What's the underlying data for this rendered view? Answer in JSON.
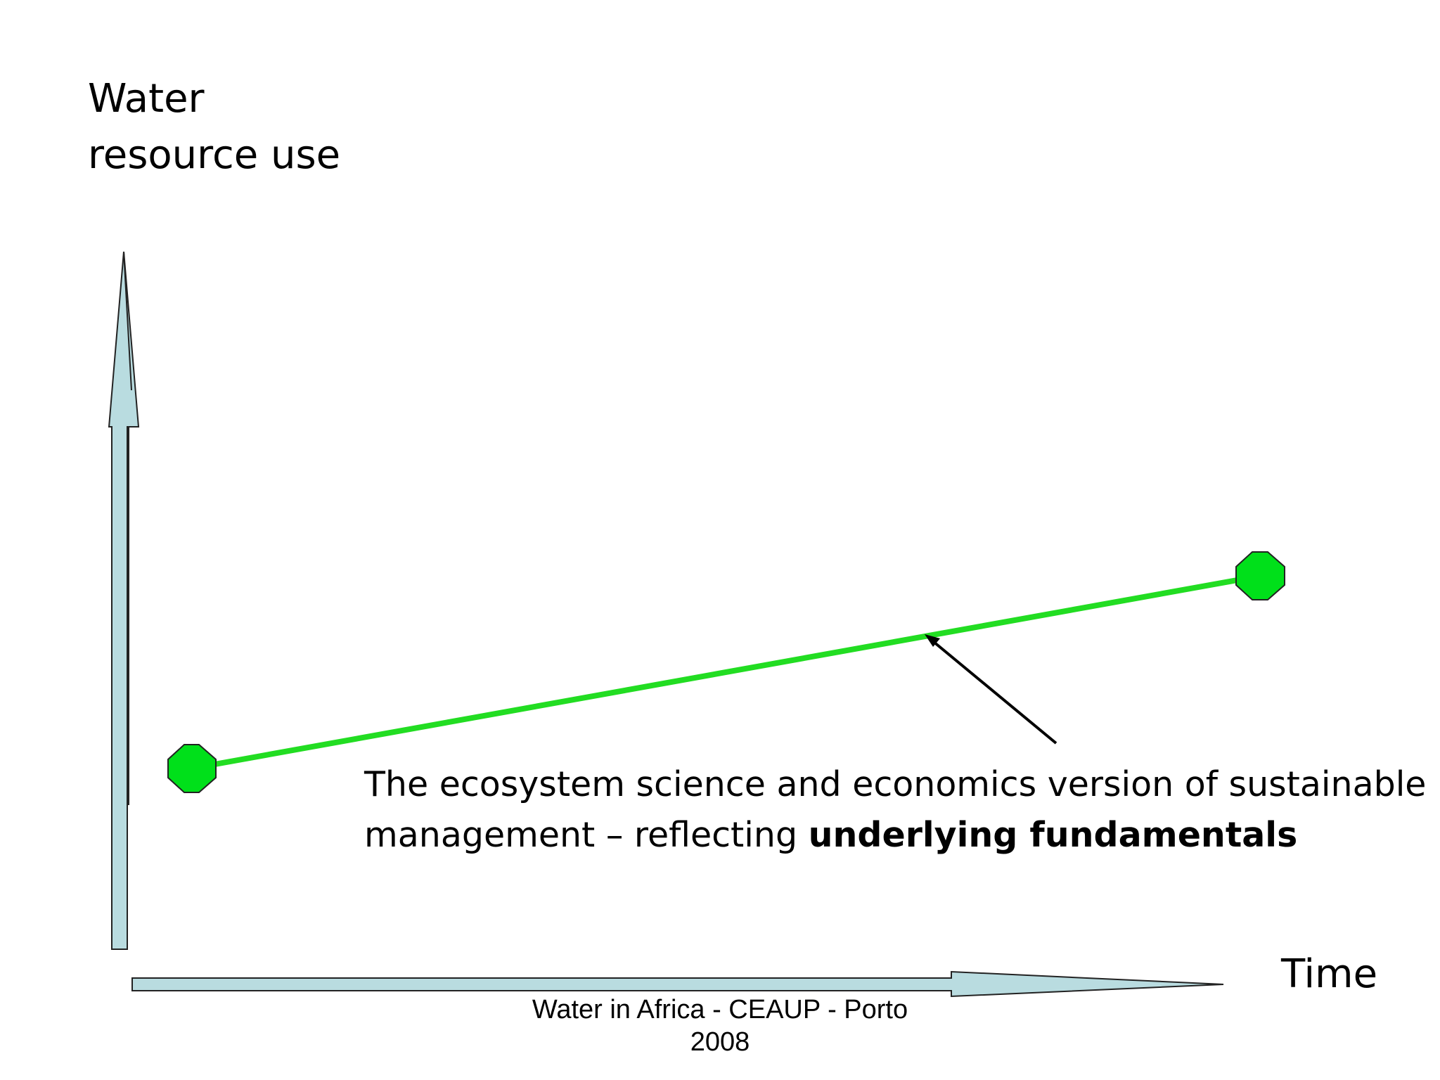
{
  "axes": {
    "y_label_line1": "Water",
    "y_label_line2": "resource use",
    "x_label": "Time",
    "arrow_fill": "#b9dce0"
  },
  "trajectory": {
    "color": "#22dd22",
    "marker_color": "#00e01a",
    "marker_shape": "octagon"
  },
  "annotation": {
    "line1": "The ecosystem science and economics version of sustainable",
    "line2_prefix": "management – reflecting ",
    "line2_bold": "underlying fundamentals"
  },
  "footer": {
    "line1": "Water in Africa - CEAUP - Porto",
    "line2": "2008"
  }
}
